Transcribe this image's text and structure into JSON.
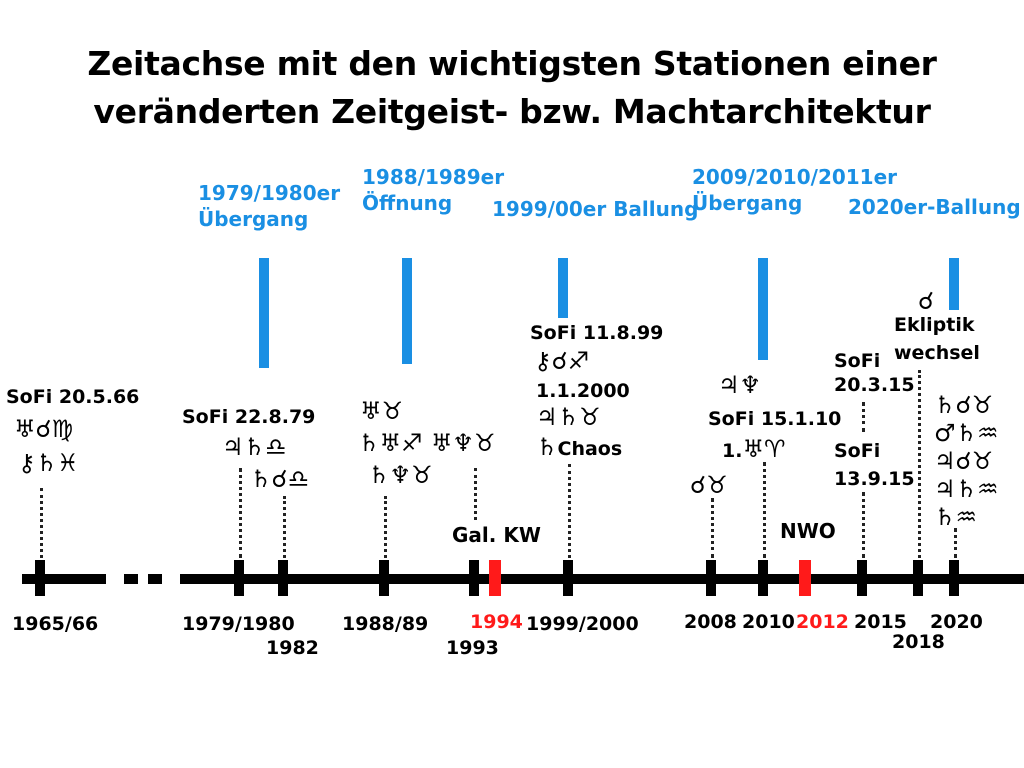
{
  "title": {
    "line1": "Zeitachse mit den wichtigsten Stationen einer",
    "line2": "veränderten Zeitgeist- bzw. Machtarchitektur"
  },
  "colors": {
    "accent": "#1a8fe3",
    "highlight": "#ff1a1a",
    "axis": "#000000"
  },
  "phases": [
    {
      "line1": "1979/1980er",
      "line2": "Übergang"
    },
    {
      "line1": "1988/1989er",
      "line2": "Öffnung"
    },
    {
      "line1": "1999/00er Ballung"
    },
    {
      "line1": "2009/2010/2011er",
      "line2": "Übergang"
    },
    {
      "line1": "2020er-Ballung"
    }
  ],
  "events": {
    "e1966": {
      "label": "SoFi 20.5.66",
      "sym1": "♅☌♍",
      "sym2": "⚷♄♓"
    },
    "e1979": {
      "label": "SoFi 22.8.79",
      "sym1": "♃♄♎",
      "sym2": "♄☌♎"
    },
    "e1988": {
      "sym1": "♅♉",
      "sym2": "♄♅♐ ♅♆♉",
      "sym3": "♄♆♉"
    },
    "e1993": {
      "label": "Gal. KW"
    },
    "e1999": {
      "label": "SoFi 11.8.99",
      "sym1": "⚷☌♐",
      "label2": "1.1.2000",
      "sym2": "♃♄♉",
      "sym3": "♄",
      "chaos": "Chaos"
    },
    "e2008": {
      "sym1": "☌♉"
    },
    "e2010": {
      "sym1": "♃♆",
      "label": "SoFi 15.1.10",
      "label2": "1.",
      "sym2": "♅♈"
    },
    "e2012": {
      "label": "NWO"
    },
    "e2015": {
      "label1": "SoFi",
      "label2": "20.3.15",
      "label3": "SoFi",
      "label4": "13.9.15"
    },
    "e2020": {
      "sym0": "☌",
      "label1": "Ekliptik",
      "label2": "wechsel",
      "sym1": "♄☌♉",
      "sym2": "♂♄♒",
      "sym3": "♃☌♉",
      "sym4": "♃♄♒",
      "sym5": "♄♒"
    }
  },
  "years": {
    "y1965": "1965/66",
    "y1979": "1979/1980",
    "y1982": "1982",
    "y1988": "1988/89",
    "y1993": "1993",
    "y1994": "1994",
    "y1999": "1999/2000",
    "y2008": "2008",
    "y2010": "2010",
    "y2012": "2012",
    "y2015": "2015",
    "y2018": "2018",
    "y2020": "2020"
  }
}
